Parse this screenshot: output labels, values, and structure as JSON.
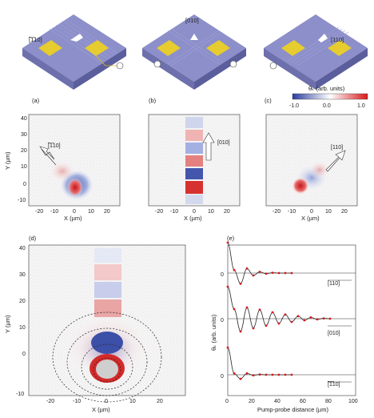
{
  "figure": {
    "panels": [
      "(a)",
      "(b)",
      "(c)",
      "(d)",
      "(e)"
    ],
    "top_labels": [
      "[̅1̅10]",
      "[010]",
      "[110]"
    ],
    "colorbar": {
      "label": "θₖ (arb. units)",
      "ticks": [
        "-1.0",
        "0.0",
        "1.0"
      ],
      "colors": {
        "negative": "#2b3d9e",
        "zero": "#ffffff",
        "positive": "#d7191c"
      }
    },
    "maps": {
      "y_label": "Y (µm)",
      "x_label": "X (µm)",
      "y_ticks": [
        "40",
        "30",
        "20",
        "10",
        "0",
        "-10"
      ],
      "x_ticks": [
        "-20",
        "-10",
        "0",
        "10",
        "20"
      ],
      "arrow_labels": [
        "[̅1̅10]",
        "[010]",
        "[110]"
      ]
    },
    "panel_d": {
      "y_ticks": [
        "40",
        "30",
        "20",
        "10",
        "0",
        "-10"
      ],
      "x_ticks": [
        "-20",
        "-10",
        "0",
        "10",
        "20"
      ],
      "x_label": "X (µm)",
      "y_label": "Y (µm)"
    },
    "panel_e": {
      "x_label": "Pump-probe distance (µm)",
      "y_label": "θₖ (arb. units)",
      "x_ticks": [
        "0",
        "20",
        "40",
        "60",
        "80",
        "100"
      ],
      "trace_zero_labels": [
        "0",
        "0",
        "0"
      ],
      "trace_labels": [
        "[110]",
        "[010]",
        "[̅1̅10]"
      ]
    }
  },
  "chart_data": {
    "type": "line",
    "xlabel": "Pump-probe distance (µm)",
    "ylabel": "θₖ (arb. units)",
    "xlim": [
      0,
      100
    ],
    "series": [
      {
        "name": "[110]",
        "x": [
          0,
          5,
          10,
          15,
          20,
          25,
          30,
          35,
          40,
          45,
          50
        ],
        "values": [
          1.0,
          0.1,
          -0.35,
          0.15,
          -0.08,
          0.04,
          -0.02,
          0.01,
          0.0,
          0.0,
          0.0
        ]
      },
      {
        "name": "[010]",
        "x": [
          0,
          5,
          10,
          15,
          20,
          25,
          30,
          35,
          40,
          45,
          50,
          55,
          60,
          65,
          70,
          75,
          80
        ],
        "values": [
          1.0,
          0.3,
          -0.4,
          0.35,
          -0.3,
          0.28,
          -0.22,
          0.2,
          -0.15,
          0.13,
          -0.1,
          0.08,
          -0.05,
          0.04,
          -0.02,
          0.01,
          0.0
        ]
      },
      {
        "name": "[̅1̅10]",
        "x": [
          0,
          5,
          10,
          15,
          20,
          25,
          30,
          35,
          40,
          45,
          50
        ],
        "values": [
          1.0,
          0.05,
          -0.15,
          0.05,
          -0.02,
          0.01,
          0.0,
          0.0,
          0.0,
          0.0,
          0.0
        ]
      }
    ]
  }
}
